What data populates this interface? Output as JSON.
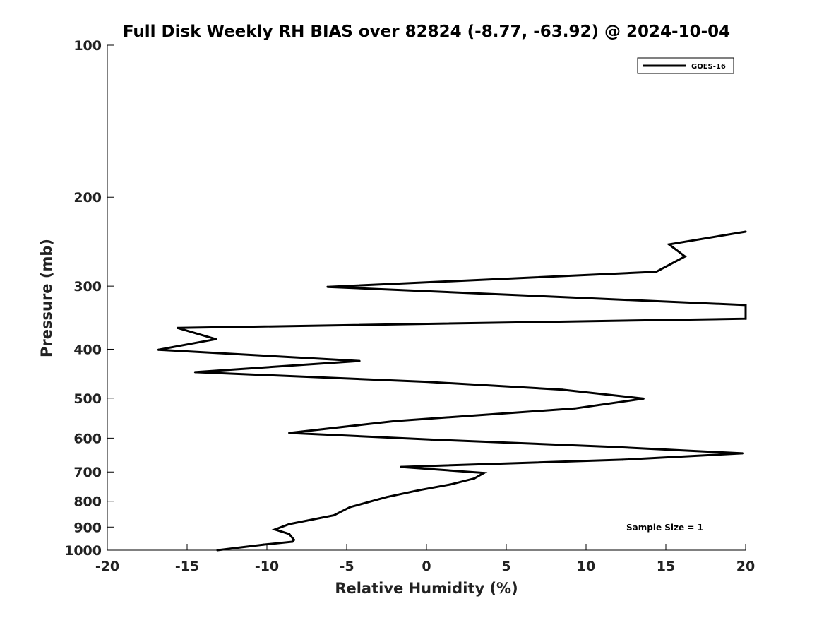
{
  "chart_data": {
    "type": "line",
    "title": "Full Disk Weekly RH BIAS over 82824 (-8.77, -63.92) @ 2024-10-04",
    "xlabel": "Relative Humidity (%)",
    "ylabel": "Pressure (mb)",
    "xlim": [
      -20,
      20
    ],
    "ylim": [
      100,
      1000
    ],
    "y_scale": "log",
    "y_reversed": true,
    "x_ticks": [
      -20,
      -15,
      -10,
      -5,
      0,
      5,
      10,
      15,
      20
    ],
    "x_tick_labels": [
      "-20",
      "-15",
      "-10",
      "-5",
      "0",
      "5",
      "10",
      "15",
      "20"
    ],
    "y_ticks": [
      100,
      200,
      300,
      400,
      500,
      600,
      700,
      800,
      900,
      1000
    ],
    "y_tick_labels": [
      "100",
      "200",
      "300",
      "400",
      "500",
      "600",
      "700",
      "800",
      "900",
      "1000"
    ],
    "grid": false,
    "legend_position": "top-right",
    "annotation": "Sample Size = 1",
    "series": [
      {
        "name": "GOES-16",
        "color": "#000000",
        "points": [
          [
            20.0,
            234
          ],
          [
            15.2,
            248
          ],
          [
            16.2,
            262
          ],
          [
            14.4,
            281
          ],
          [
            -6.2,
            301
          ],
          [
            20.0,
            327
          ],
          [
            20.0,
            348
          ],
          [
            -15.6,
            363
          ],
          [
            -13.2,
            382
          ],
          [
            -16.8,
            401
          ],
          [
            -4.2,
            422
          ],
          [
            -14.5,
            444
          ],
          [
            0.0,
            464
          ],
          [
            8.5,
            481
          ],
          [
            13.6,
            501
          ],
          [
            9.3,
            524
          ],
          [
            -2.0,
            555
          ],
          [
            -8.6,
            586
          ],
          [
            0.3,
            604
          ],
          [
            11.5,
            624
          ],
          [
            19.8,
            643
          ],
          [
            12.3,
            662
          ],
          [
            -1.6,
            684
          ],
          [
            3.6,
            703
          ],
          [
            3.0,
            721
          ],
          [
            1.5,
            741
          ],
          [
            -0.5,
            761
          ],
          [
            -2.5,
            785
          ],
          [
            -4.8,
            822
          ],
          [
            -5.8,
            853
          ],
          [
            -8.6,
            888
          ],
          [
            -9.5,
            910
          ],
          [
            -8.6,
            929
          ],
          [
            -8.3,
            954
          ],
          [
            -8.4,
            962
          ],
          [
            -10.2,
            975
          ],
          [
            -13.1,
            1000
          ]
        ]
      }
    ]
  }
}
